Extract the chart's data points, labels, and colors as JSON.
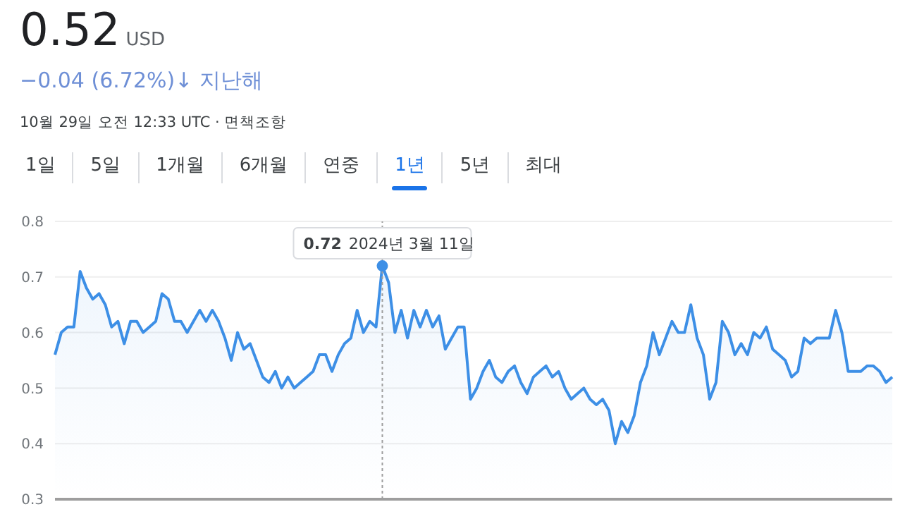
{
  "chart_data": {
    "type": "area",
    "title": "0.52",
    "subtitle": "USD",
    "annotations": [
      "−0.04 (6.72%)↓ 지난해",
      "10월 29일 오전 12:33 UTC · 면책조항",
      "1일",
      "5일",
      "1개월",
      "6개월",
      "연중",
      "1년",
      "5년",
      "최대",
      {
        "text": "0.72 2024년 3월 11일",
        "y": 0.72
      }
    ],
    "categories": [
      null,
      null,
      null,
      null,
      null,
      null,
      null,
      null,
      null,
      null,
      null,
      null,
      null,
      null,
      null,
      null,
      null,
      null,
      null,
      null,
      null,
      null,
      null,
      null,
      null,
      null,
      null,
      null,
      null,
      null,
      null,
      null,
      null,
      null,
      null,
      null,
      null,
      null,
      null,
      null,
      null,
      null,
      null,
      null,
      null,
      null,
      null,
      null,
      null,
      null,
      null,
      null,
      null,
      null,
      null,
      null,
      null,
      null,
      null,
      null,
      null,
      null,
      null,
      null,
      null,
      null,
      null,
      null,
      null,
      null,
      null,
      null,
      null,
      null,
      null,
      null,
      null,
      null,
      null,
      null,
      null,
      null,
      null,
      null,
      null,
      null,
      null,
      null,
      null,
      null,
      null,
      null,
      null,
      null,
      null,
      null,
      null,
      null,
      null,
      null,
      null,
      null,
      null,
      null,
      null,
      null,
      null,
      null,
      null,
      null,
      null,
      null,
      null,
      null,
      null,
      null,
      null,
      null,
      null,
      null,
      null,
      null,
      null,
      null,
      null,
      null,
      null,
      null,
      null,
      null,
      null,
      null,
      null,
      null
    ],
    "values": [
      0.56,
      0.6,
      0.61,
      0.61,
      0.71,
      0.68,
      0.66,
      0.67,
      0.65,
      0.61,
      0.62,
      0.58,
      0.62,
      0.62,
      0.6,
      0.61,
      0.62,
      0.67,
      0.66,
      0.62,
      0.62,
      0.6,
      0.62,
      0.64,
      0.62,
      0.64,
      0.62,
      0.59,
      0.55,
      0.6,
      0.57,
      0.58,
      0.55,
      0.52,
      0.51,
      0.53,
      0.5,
      0.52,
      0.5,
      0.51,
      0.52,
      0.53,
      0.56,
      0.56,
      0.53,
      0.56,
      0.58,
      0.59,
      0.64,
      0.6,
      0.62,
      0.61,
      0.72,
      0.69,
      0.6,
      0.64,
      0.59,
      0.64,
      0.61,
      0.64,
      0.61,
      0.63,
      0.57,
      0.59,
      0.61,
      0.61,
      0.48,
      0.5,
      0.53,
      0.55,
      0.52,
      0.51,
      0.53,
      0.54,
      0.51,
      0.49,
      0.52,
      0.53,
      0.54,
      0.52,
      0.53,
      0.5,
      0.48,
      0.49,
      0.5,
      0.48,
      0.47,
      0.48,
      0.46,
      0.4,
      0.44,
      0.42,
      0.45,
      0.51,
      0.54,
      0.6,
      0.56,
      0.59,
      0.62,
      0.6,
      0.6,
      0.65,
      0.59,
      0.56,
      0.48,
      0.51,
      0.62,
      0.6,
      0.56,
      0.58,
      0.56,
      0.6,
      0.59,
      0.61,
      0.57,
      0.56,
      0.55,
      0.52,
      0.53,
      0.59,
      0.58,
      0.59,
      0.59,
      0.59,
      0.64,
      0.6,
      0.53,
      0.53,
      0.53,
      0.54,
      0.54,
      0.53,
      0.51,
      0.52
    ],
    "color": "#3d8fe6",
    "ylim": [
      0.3,
      0.8
    ],
    "yticks": [
      0.3,
      0.4,
      0.5,
      0.6,
      0.7,
      0.8
    ],
    "grid": "y",
    "tick_labels": "y"
  }
}
